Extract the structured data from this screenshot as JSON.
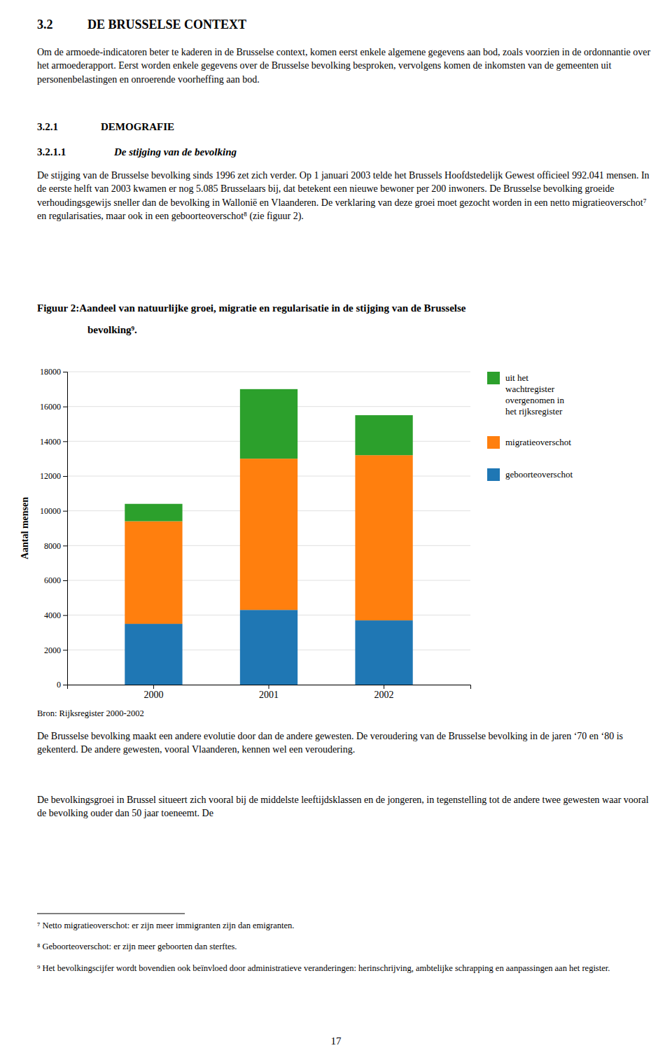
{
  "page": {
    "heading_number": "3.2",
    "heading_title": "DE BRUSSELSE CONTEXT",
    "paragraph_1": "Om de armoede-indicatoren beter te kaderen in de Brusselse context, komen eerst enkele algemene gegevens aan bod, zoals voorzien in de ordonnantie over het armoederapport. Eerst worden enkele gegevens over de Brusselse bevolking besproken, vervolgens komen de inkomsten van de gemeenten uit personenbelastingen en onroerende voorheffing aan bod.",
    "section_number": "3.2.1",
    "section_title": "DEMOGRAFIE",
    "subsection_number": "3.2.1.1",
    "subsection_title": "De stijging van de bevolking",
    "paragraph_2": "De stijging van de Brusselse bevolking sinds 1996 zet zich verder. Op 1 januari 2003 telde het Brussels Hoofdstedelijk Gewest officieel 992.041 mensen. In de eerste helft van 2003 kwamen er nog 5.085 Brusselaars bij, dat betekent een nieuwe bewoner per 200 inwoners. De Brusselse bevolking groeide verhoudingsgewijs sneller dan de bevolking in Wallonië en Vlaanderen. De verklaring van deze groei moet gezocht worden in een netto migratieoverschot⁷ en regularisaties, maar ook in een geboorteoverschot⁸ (zie figuur 2).",
    "paragraph_3": "De Brusselse bevolking maakt een andere evolutie door dan de andere gewesten. De veroudering van de Brusselse bevolking in de jaren ‘70 en ‘80 is gekenterd. De andere gewesten, vooral Vlaanderen, kennen wel een veroudering.",
    "paragraph_4": "De bevolkingsgroei in Brussel situeert zich vooral bij de middelste leeftijdsklassen en de jongeren, in tegenstelling tot de andere twee gewesten waar vooral de bevolking ouder dan 50 jaar toeneemt. De",
    "footnotes": [
      "⁷ Netto migratieoverschot: er zijn meer immigranten zijn dan emigranten.",
      "⁸ Geboorteoverschot: er zijn meer geboorten dan sterftes.",
      "⁹ Het bevolkingscijfer wordt bovendien ook beïnvloed door administratieve veranderingen: herinschrijving, ambtelijke schrapping en aanpassingen aan het register."
    ],
    "page_number": "17"
  },
  "chart_data": {
    "type": "bar",
    "stacked": true,
    "title": "Figuur 2:Aandeel van natuurlijke groei, migratie en regularisatie in de stijging van de Brusselse\nbevolking⁹.",
    "source": "Bron: Rijksregister 2000-2002",
    "categories": [
      "2000",
      "2001",
      "2002"
    ],
    "series": [
      {
        "name": "geboorteoverschot",
        "values": [
          3500,
          4300,
          3700
        ]
      },
      {
        "name": "migratieoverschot",
        "values": [
          5900,
          8700,
          9500
        ]
      },
      {
        "name": "uit het\nwachtregister\novergenomen in\nhet rijksregister",
        "values": [
          1000,
          4000,
          2300
        ]
      }
    ],
    "ylabel": "Aantal mensen",
    "ylim": [
      0,
      18000
    ],
    "yticks": [
      0,
      2000,
      4000,
      6000,
      8000,
      10000,
      12000,
      14000,
      16000,
      18000
    ],
    "grid": true,
    "legend": "right"
  }
}
